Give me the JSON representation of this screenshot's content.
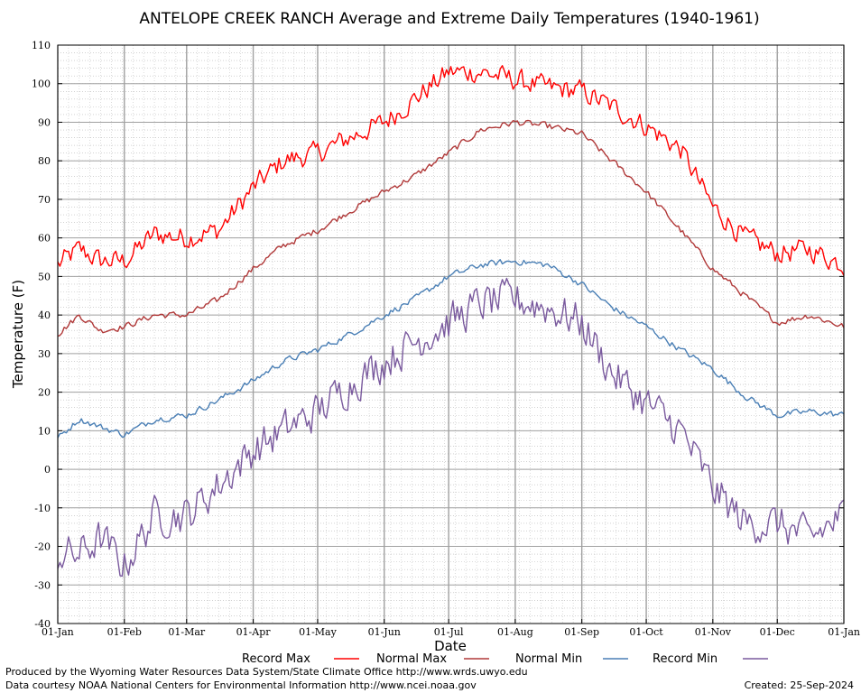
{
  "chart_data": {
    "type": "line",
    "title": "ANTELOPE CREEK RANCH Average and Extreme Daily Temperatures (1940-1961)",
    "xlabel": "Date",
    "ylabel": "Temperature (F)",
    "ylim": [
      -40,
      110
    ],
    "yticks": [
      -40,
      -30,
      -20,
      -10,
      0,
      10,
      20,
      30,
      40,
      50,
      60,
      70,
      80,
      90,
      100,
      110
    ],
    "x_tick_labels": [
      "01-Jan",
      "01-Feb",
      "01-Mar",
      "01-Apr",
      "01-May",
      "01-Jun",
      "01-Jul",
      "01-Aug",
      "01-Sep",
      "01-Oct",
      "01-Nov",
      "01-Dec",
      "01-Jan"
    ],
    "x_tick_days": [
      0,
      31,
      60,
      91,
      121,
      152,
      182,
      213,
      244,
      274,
      305,
      335,
      366
    ],
    "x_units": "day of year (0 = 01-Jan)",
    "grid": true,
    "legend_position": "bottom",
    "series": [
      {
        "name": "Record Max",
        "color": "#ff0000",
        "noise": 4.0,
        "x": [
          0,
          10,
          20,
          31,
          45,
          60,
          75,
          91,
          105,
          121,
          136,
          152,
          166,
          182,
          197,
          213,
          228,
          244,
          258,
          274,
          290,
          305,
          320,
          335,
          350,
          366
        ],
        "values": [
          53,
          57,
          54,
          54,
          61,
          60,
          62,
          73,
          80,
          82,
          86,
          90,
          96,
          103,
          103,
          101,
          99,
          98,
          94,
          89,
          83,
          68,
          60,
          56,
          57,
          53
        ]
      },
      {
        "name": "Normal Max",
        "color": "#b03838",
        "noise": 1.2,
        "x": [
          0,
          10,
          20,
          31,
          45,
          60,
          75,
          91,
          105,
          121,
          136,
          152,
          166,
          182,
          197,
          213,
          228,
          244,
          258,
          274,
          290,
          305,
          320,
          335,
          350,
          366
        ],
        "values": [
          35,
          40,
          36,
          37,
          40,
          40,
          44,
          52,
          58,
          62,
          67,
          72,
          76,
          82,
          88,
          90,
          89,
          87,
          80,
          72,
          62,
          52,
          45,
          38,
          40,
          37
        ]
      },
      {
        "name": "Normal Min",
        "color": "#4a7fb5",
        "noise": 1.2,
        "x": [
          0,
          10,
          20,
          31,
          45,
          60,
          75,
          91,
          105,
          121,
          136,
          152,
          166,
          182,
          197,
          213,
          228,
          244,
          258,
          274,
          290,
          305,
          320,
          335,
          350,
          366
        ],
        "values": [
          8,
          13,
          11,
          9,
          13,
          14,
          18,
          23,
          28,
          31,
          35,
          40,
          44,
          50,
          53,
          54,
          53,
          48,
          42,
          37,
          31,
          26,
          19,
          14,
          15,
          14
        ]
      },
      {
        "name": "Record Min",
        "color": "#7a5a9e",
        "noise": 7.0,
        "x": [
          0,
          10,
          20,
          31,
          45,
          60,
          75,
          91,
          105,
          121,
          136,
          152,
          166,
          182,
          197,
          213,
          228,
          244,
          258,
          274,
          290,
          305,
          320,
          335,
          350,
          366
        ],
        "values": [
          -22,
          -22,
          -18,
          -25,
          -12,
          -12,
          -4,
          5,
          10,
          15,
          22,
          28,
          33,
          38,
          43,
          44,
          42,
          38,
          25,
          17,
          10,
          -5,
          -14,
          -14,
          -18,
          -12
        ]
      }
    ]
  },
  "footer": {
    "line1": "Produced by the Wyoming Water Resources Data System/State Climate Office http://www.wrds.uwyo.edu",
    "line2": "Data courtesy NOAA National Centers for Environmental Information http://www.ncei.noaa.gov",
    "created": "Created:  25-Sep-2024"
  }
}
